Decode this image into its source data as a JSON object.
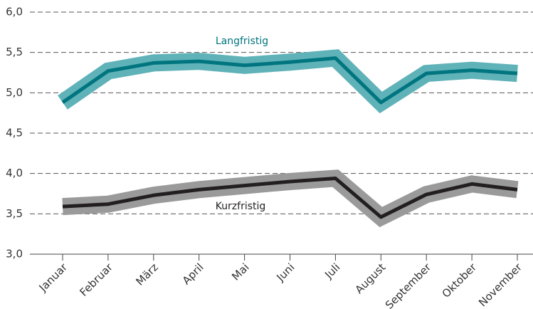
{
  "chart_data": {
    "type": "line",
    "categories": [
      "Januar",
      "Februar",
      "März",
      "April",
      "Mai",
      "Juni",
      "Juli",
      "August",
      "September",
      "Oktober",
      "November"
    ],
    "series": [
      {
        "name": "Langfristig",
        "color": "#00757f",
        "band_color": "#5fb2b8",
        "values": [
          4.88,
          5.27,
          5.37,
          5.39,
          5.34,
          5.38,
          5.43,
          4.88,
          5.24,
          5.28,
          5.24
        ]
      },
      {
        "name": "Kurzfristig",
        "color": "#231f20",
        "band_color": "#9a9a9a",
        "values": [
          3.59,
          3.62,
          3.73,
          3.8,
          3.85,
          3.9,
          3.94,
          3.46,
          3.74,
          3.87,
          3.8
        ]
      }
    ],
    "ylim": [
      3.0,
      6.0
    ],
    "yticks": [
      {
        "value": 3.0,
        "label": "3,0"
      },
      {
        "value": 3.5,
        "label": "3,5"
      },
      {
        "value": 4.0,
        "label": "4,0"
      },
      {
        "value": 4.5,
        "label": "4,5"
      },
      {
        "value": 5.0,
        "label": "5,0"
      },
      {
        "value": 5.5,
        "label": "5,5"
      },
      {
        "value": 6.0,
        "label": "6,0"
      }
    ],
    "grid": true
  }
}
